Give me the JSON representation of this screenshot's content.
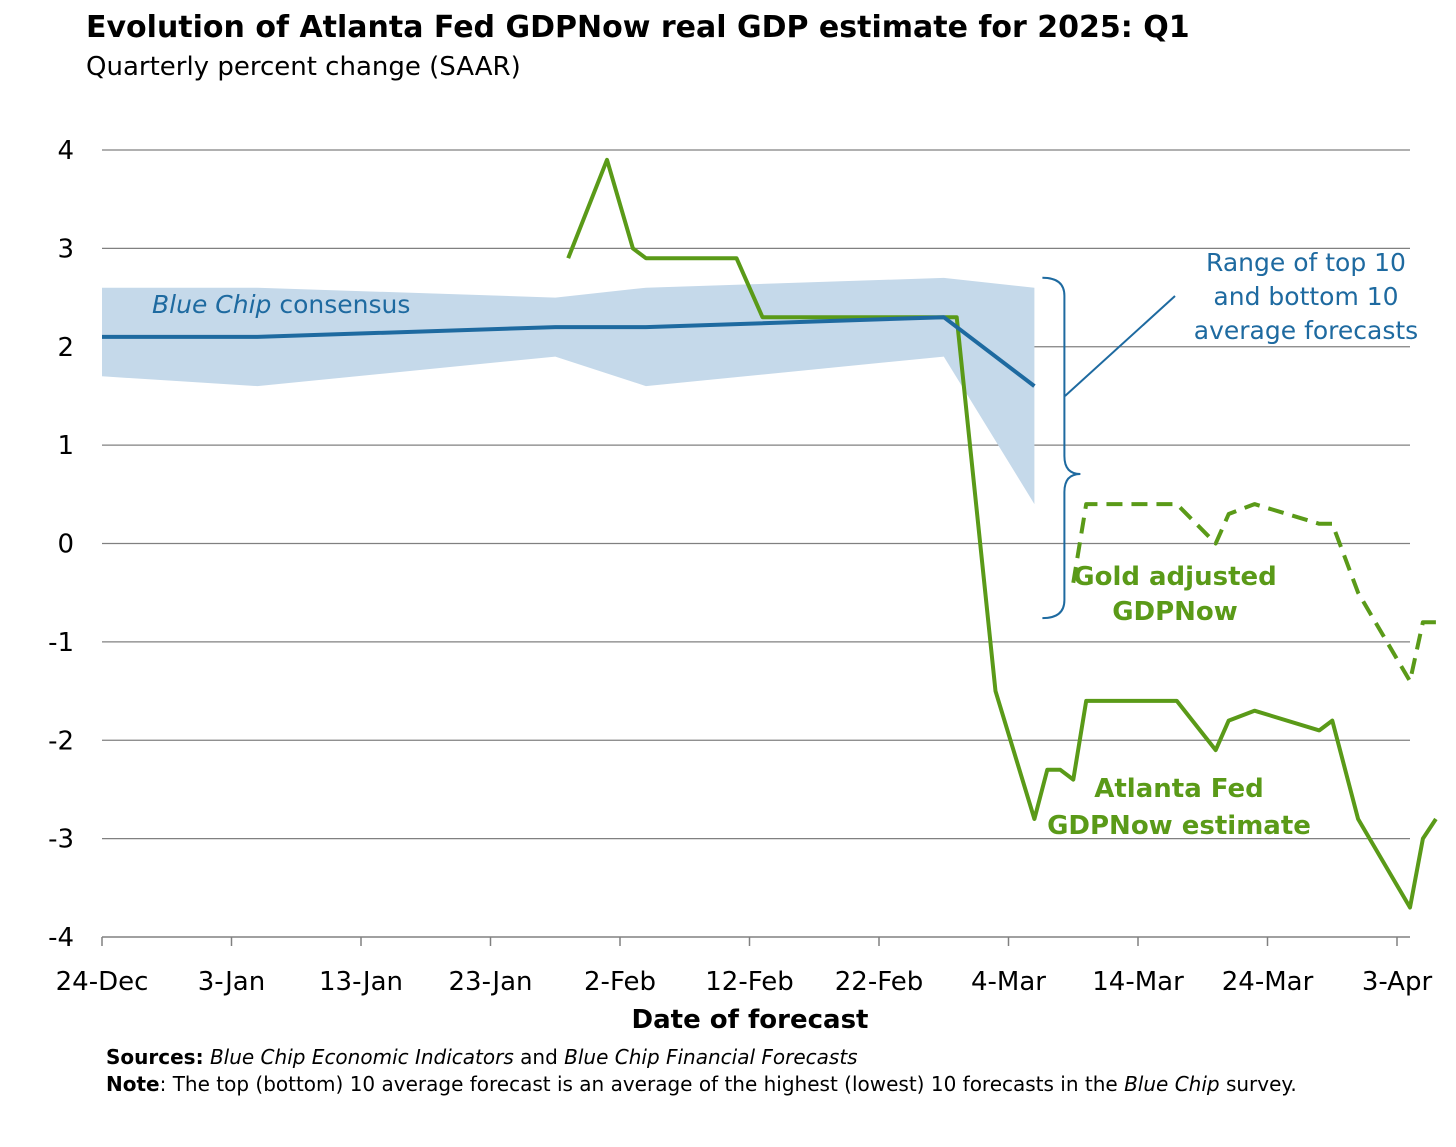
{
  "title": "Evolution of Atlanta Fed GDPNow real GDP estimate for 2025: Q1",
  "subtitle": "Quarterly percent change (SAAR)",
  "notes": {
    "sources_label": "Sources:",
    "sources_pub1": "Blue Chip Economic Indicators",
    "sources_and": " and ",
    "sources_pub2": "Blue Chip Financial Forecasts",
    "note_label": "Note",
    "note_text_a": ": The top (bottom) 10 average forecast is an average of the highest (lowest) 10 forecasts in the ",
    "note_italic": "Blue Chip",
    "note_text_b": " survey."
  },
  "colors": {
    "gdpnow_green": "#5a9a18",
    "consensus_blue": "#1e6aa0",
    "range_band": "#c5d9ea",
    "grid": "#808080"
  },
  "chart_data": {
    "type": "line",
    "title": "Evolution of Atlanta Fed GDPNow real GDP estimate for 2025: Q1",
    "subtitle": "Quarterly percent change (SAAR)",
    "xlabel": "Date of forecast",
    "ylabel": "",
    "x_tick_labels": [
      "24-Dec",
      "3-Jan",
      "13-Jan",
      "23-Jan",
      "2-Feb",
      "12-Feb",
      "22-Feb",
      "4-Mar",
      "14-Mar",
      "24-Mar",
      "3-Apr"
    ],
    "x_ticks": [
      "2024-12-24",
      "2025-01-03",
      "2025-01-13",
      "2025-01-23",
      "2025-02-02",
      "2025-02-12",
      "2025-02-22",
      "2025-03-04",
      "2025-03-14",
      "2025-03-24",
      "2025-04-03"
    ],
    "xlim": [
      "2024-12-24",
      "2025-04-03"
    ],
    "y_ticks": [
      -4,
      -3,
      -2,
      -1,
      0,
      1,
      2,
      3,
      4
    ],
    "ylim": [
      -4,
      4
    ],
    "grid": "horizontal",
    "annotations": {
      "consensus_italic": "Blue Chip",
      "consensus_rest": " consensus",
      "range_lines": [
        "Range of top 10",
        "and bottom 10",
        "average forecasts"
      ],
      "gold_lines": [
        "Gold adjusted",
        "GDPNow"
      ],
      "gdpnow_lines": [
        "Atlanta Fed",
        "GDPNow estimate"
      ]
    },
    "series": [
      {
        "name": "Atlanta Fed GDPNow estimate",
        "style": "solid",
        "points": [
          [
            "2025-01-29",
            2.9
          ],
          [
            "2025-02-01",
            3.9
          ],
          [
            "2025-02-03",
            3.0
          ],
          [
            "2025-02-04",
            2.9
          ],
          [
            "2025-02-11",
            2.9
          ],
          [
            "2025-02-13",
            2.3
          ],
          [
            "2025-02-27",
            2.3
          ],
          [
            "2025-02-28",
            2.3
          ],
          [
            "2025-03-03",
            -1.5
          ],
          [
            "2025-03-06",
            -2.8
          ],
          [
            "2025-03-07",
            -2.3
          ],
          [
            "2025-03-08",
            -2.3
          ],
          [
            "2025-03-09",
            -2.4
          ],
          [
            "2025-03-10",
            -1.6
          ],
          [
            "2025-03-17",
            -1.6
          ],
          [
            "2025-03-20",
            -2.1
          ],
          [
            "2025-03-21",
            -1.8
          ],
          [
            "2025-03-23",
            -1.7
          ],
          [
            "2025-03-28",
            -1.9
          ],
          [
            "2025-03-29",
            -1.8
          ],
          [
            "2025-03-31",
            -2.8
          ],
          [
            "2025-04-04",
            -3.7
          ],
          [
            "2025-04-05",
            -3.0
          ],
          [
            "2025-04-06",
            -2.8
          ]
        ]
      },
      {
        "name": "Gold adjusted GDPNow",
        "style": "dashed",
        "points": [
          [
            "2025-03-09",
            -0.4
          ],
          [
            "2025-03-10",
            0.4
          ],
          [
            "2025-03-17",
            0.4
          ],
          [
            "2025-03-20",
            0.0
          ],
          [
            "2025-03-21",
            0.3
          ],
          [
            "2025-03-23",
            0.4
          ],
          [
            "2025-03-28",
            0.2
          ],
          [
            "2025-03-29",
            0.2
          ],
          [
            "2025-03-31",
            -0.5
          ],
          [
            "2025-04-04",
            -1.4
          ],
          [
            "2025-04-05",
            -0.8
          ],
          [
            "2025-04-06",
            -0.8
          ]
        ]
      },
      {
        "name": "Blue Chip consensus",
        "style": "solid",
        "points": [
          [
            "2024-12-24",
            2.1
          ],
          [
            "2025-01-05",
            2.1
          ],
          [
            "2025-01-28",
            2.2
          ],
          [
            "2025-02-04",
            2.2
          ],
          [
            "2025-02-27",
            2.3
          ],
          [
            "2025-03-06",
            1.6
          ]
        ]
      }
    ],
    "range_band": {
      "name": "Range of top 10 and bottom 10 average forecasts",
      "points": [
        [
          "2024-12-24",
          1.7,
          2.6
        ],
        [
          "2025-01-05",
          1.6,
          2.6
        ],
        [
          "2025-01-28",
          1.9,
          2.5
        ],
        [
          "2025-02-04",
          1.6,
          2.6
        ],
        [
          "2025-02-27",
          1.9,
          2.7
        ],
        [
          "2025-03-06",
          0.4,
          2.6
        ]
      ]
    }
  }
}
